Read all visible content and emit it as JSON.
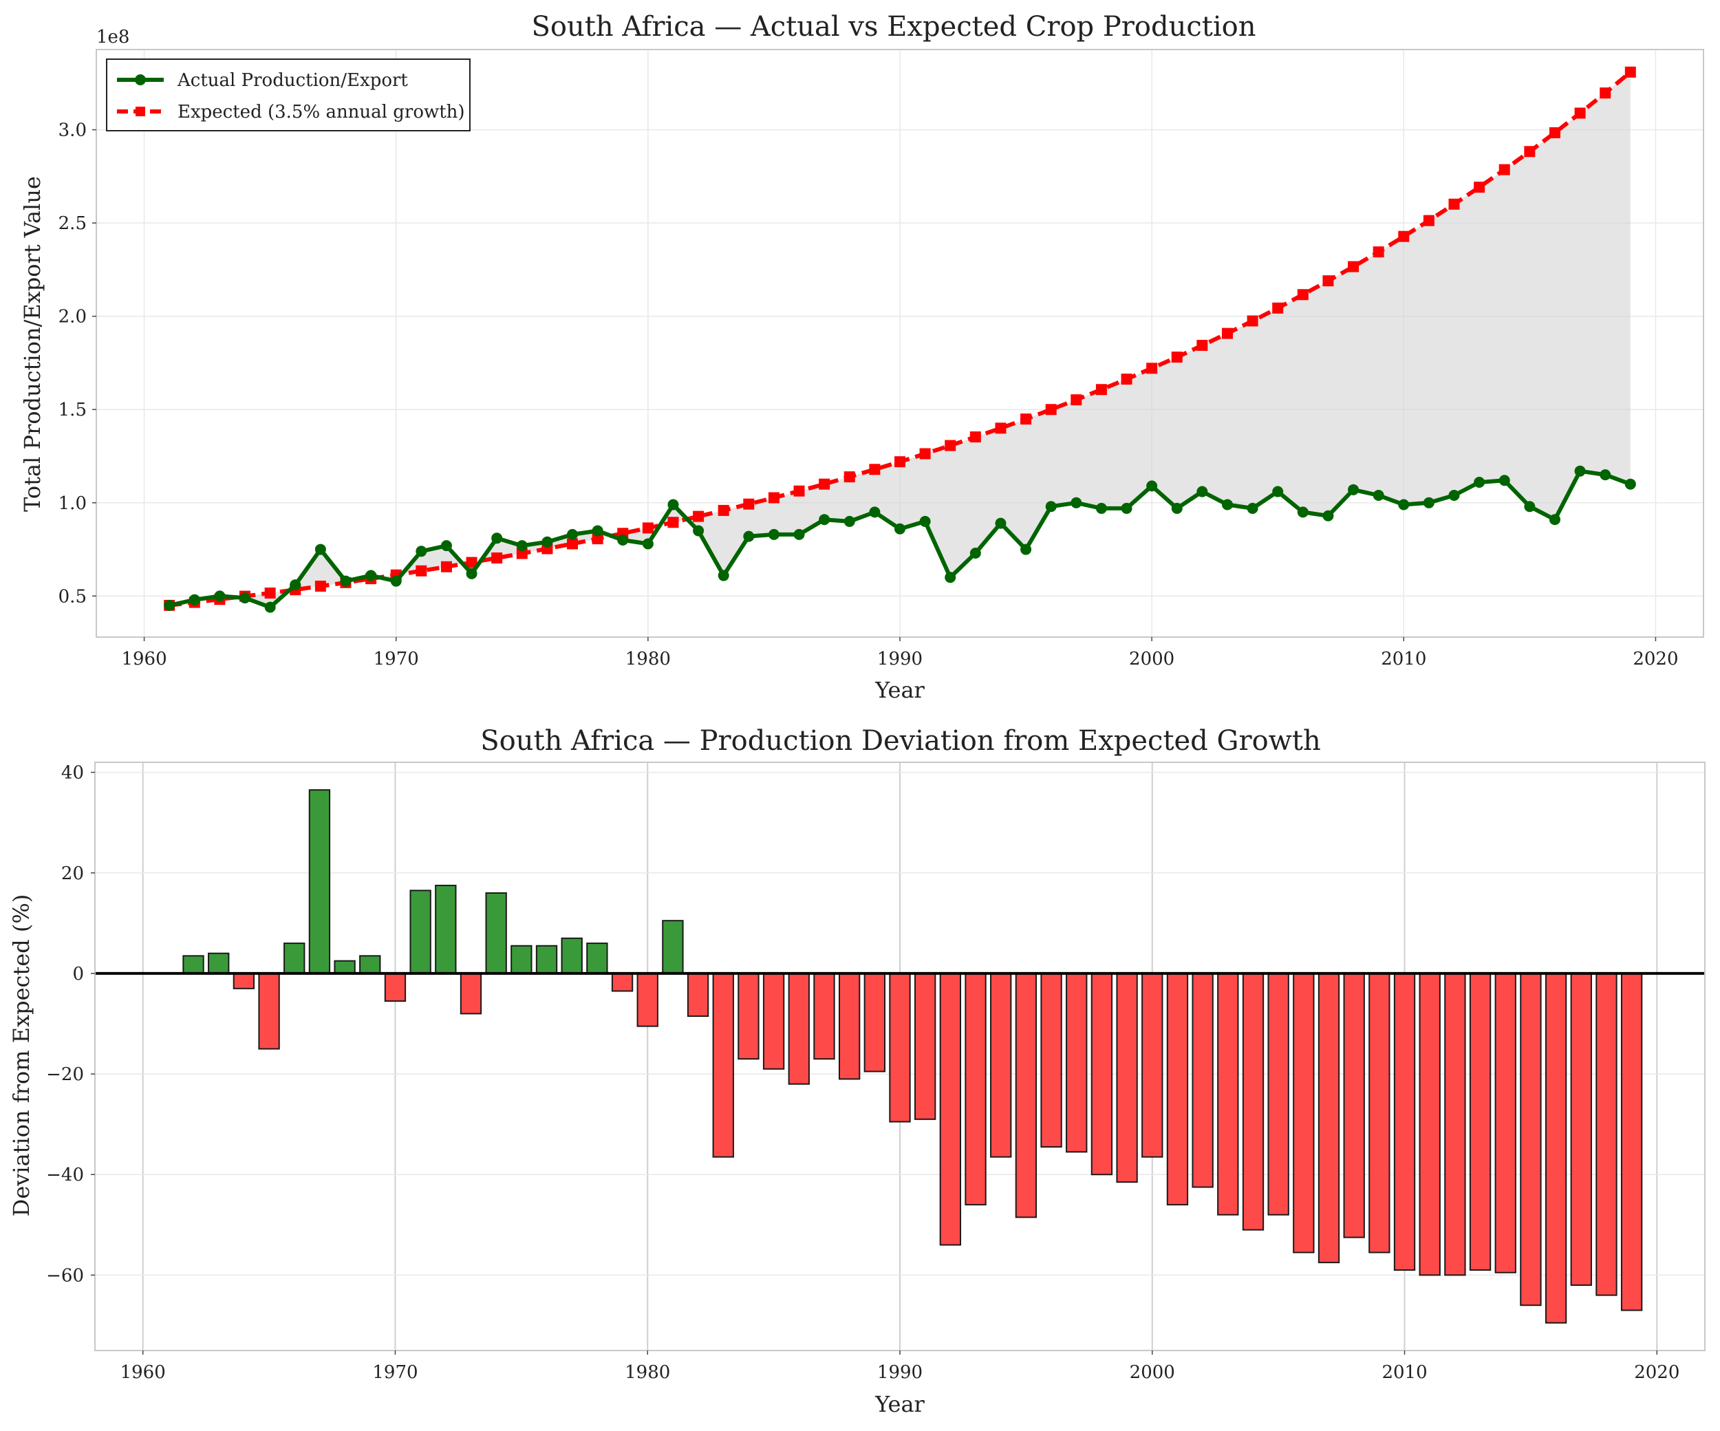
{
  "colors": {
    "actual": "#006400",
    "expected": "#ff0000",
    "fill_gap": "#d3d3d3",
    "bar_positive": "#3a9a3a",
    "bar_negative": "#ff4a4a",
    "bar_edge": "#1a1a1a",
    "grid": "#e8e8e8",
    "spine": "#c8c8c8"
  },
  "chart_data": [
    {
      "type": "line",
      "title": "South Africa — Actual vs Expected Crop Production",
      "xlabel": "Year",
      "ylabel": "Total Production/Export Value",
      "y_offset_label": "1e8",
      "xlim": [
        1958.1,
        2021.9
      ],
      "ylim": [
        0.28,
        3.43
      ],
      "xticks": [
        1960,
        1970,
        1980,
        1990,
        2000,
        2010,
        2020
      ],
      "xtick_labels": [
        "1960",
        "1970",
        "1980",
        "1990",
        "2000",
        "2010",
        "2020"
      ],
      "yticks": [
        0.5,
        1.0,
        1.5,
        2.0,
        2.5,
        3.0
      ],
      "ytick_labels": [
        "0.5",
        "1.0",
        "1.5",
        "2.0",
        "2.5",
        "3.0"
      ],
      "grid": true,
      "legend_position": "top-left",
      "fill_between_series": true,
      "x": [
        1961,
        1962,
        1963,
        1964,
        1965,
        1966,
        1967,
        1968,
        1969,
        1970,
        1971,
        1972,
        1973,
        1974,
        1975,
        1976,
        1977,
        1978,
        1979,
        1980,
        1981,
        1982,
        1983,
        1984,
        1985,
        1986,
        1987,
        1988,
        1989,
        1990,
        1991,
        1992,
        1993,
        1994,
        1995,
        1996,
        1997,
        1998,
        1999,
        2000,
        2001,
        2002,
        2003,
        2004,
        2005,
        2006,
        2007,
        2008,
        2009,
        2010,
        2011,
        2012,
        2013,
        2014,
        2015,
        2016,
        2017,
        2018,
        2019
      ],
      "series": [
        {
          "name": "Actual Production/Export",
          "marker": "circle",
          "values": [
            0.45,
            0.48,
            0.5,
            0.49,
            0.44,
            0.56,
            0.75,
            0.58,
            0.61,
            0.58,
            0.74,
            0.77,
            0.62,
            0.81,
            0.77,
            0.79,
            0.83,
            0.85,
            0.8,
            0.78,
            0.99,
            0.85,
            0.61,
            0.82,
            0.83,
            0.83,
            0.91,
            0.9,
            0.95,
            0.86,
            0.9,
            0.6,
            0.73,
            0.89,
            0.75,
            0.98,
            1.0,
            0.97,
            0.97,
            1.09,
            0.97,
            1.06,
            0.99,
            0.97,
            1.06,
            0.95,
            0.93,
            1.07,
            1.04,
            0.99,
            1.0,
            1.04,
            1.11,
            1.12,
            0.98,
            0.91,
            1.17,
            1.15,
            1.1
          ]
        },
        {
          "name": "Expected (3.5% annual growth)",
          "marker": "square",
          "dashed": true,
          "values": [
            0.45,
            0.466,
            0.482,
            0.499,
            0.516,
            0.534,
            0.553,
            0.572,
            0.593,
            0.613,
            0.635,
            0.657,
            0.68,
            0.704,
            0.728,
            0.754,
            0.78,
            0.807,
            0.836,
            0.865,
            0.895,
            0.927,
            0.959,
            0.993,
            1.027,
            1.063,
            1.1,
            1.139,
            1.179,
            1.22,
            1.263,
            1.307,
            1.353,
            1.4,
            1.449,
            1.5,
            1.552,
            1.607,
            1.663,
            1.721,
            1.781,
            1.844,
            1.908,
            1.975,
            2.044,
            2.116,
            2.19,
            2.266,
            2.345,
            2.428,
            2.513,
            2.601,
            2.692,
            2.786,
            2.883,
            2.984,
            3.089,
            3.197,
            3.309
          ]
        }
      ]
    },
    {
      "type": "bar",
      "title": "South Africa — Production Deviation from Expected Growth",
      "xlabel": "Year",
      "ylabel": "Deviation from Expected (%)",
      "xlim": [
        1958.1,
        2021.9
      ],
      "ylim": [
        -75,
        42
      ],
      "xticks": [
        1960,
        1970,
        1980,
        1990,
        2000,
        2010,
        2020
      ],
      "xtick_labels": [
        "1960",
        "1970",
        "1980",
        "1990",
        "2000",
        "2010",
        "2020"
      ],
      "yticks": [
        -60,
        -40,
        -20,
        0,
        20,
        40
      ],
      "ytick_labels": [
        "−60",
        "−40",
        "−20",
        "0",
        "20",
        "40"
      ],
      "grid": true,
      "zero_line": true,
      "x": [
        1961,
        1962,
        1963,
        1964,
        1965,
        1966,
        1967,
        1968,
        1969,
        1970,
        1971,
        1972,
        1973,
        1974,
        1975,
        1976,
        1977,
        1978,
        1979,
        1980,
        1981,
        1982,
        1983,
        1984,
        1985,
        1986,
        1987,
        1988,
        1989,
        1990,
        1991,
        1992,
        1993,
        1994,
        1995,
        1996,
        1997,
        1998,
        1999,
        2000,
        2001,
        2002,
        2003,
        2004,
        2005,
        2006,
        2007,
        2008,
        2009,
        2010,
        2011,
        2012,
        2013,
        2014,
        2015,
        2016,
        2017,
        2018,
        2019
      ],
      "values": [
        0,
        3.5,
        4,
        -3,
        -15,
        6,
        36.5,
        2.5,
        3.5,
        -5.5,
        16.5,
        17.5,
        -8,
        16,
        5.5,
        5.5,
        7,
        6,
        -3.5,
        -10.5,
        10.5,
        -8.5,
        -36.5,
        -17,
        -19,
        -22,
        -17,
        -21,
        -19.5,
        -29.5,
        -29,
        -54,
        -46,
        -36.5,
        -48.5,
        -34.5,
        -35.5,
        -40,
        -41.5,
        -36.5,
        -46,
        -42.5,
        -48,
        -51,
        -48,
        -55.5,
        -57.5,
        -52.5,
        -55.5,
        -59,
        -60,
        -60,
        -59,
        -59.5,
        -66,
        -69.5,
        -62,
        -64,
        -67
      ]
    }
  ]
}
